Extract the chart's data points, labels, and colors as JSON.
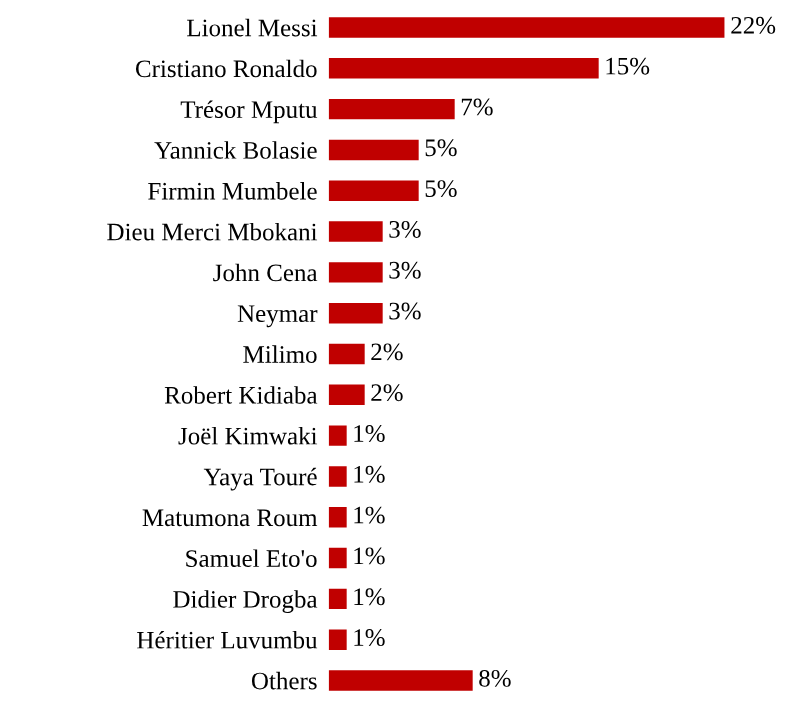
{
  "chart_data": {
    "type": "bar",
    "orientation": "horizontal",
    "categories": [
      "Lionel Messi",
      "Cristiano Ronaldo",
      "Trésor Mputu",
      "Yannick Bolasie",
      "Firmin Mumbele",
      "Dieu Merci Mbokani",
      "John Cena",
      "Neymar",
      "Milimo",
      "Robert Kidiaba",
      "Joël Kimwaki",
      "Yaya Touré",
      "Matumona Roum",
      "Samuel Eto'o",
      "Didier Drogba",
      "Héritier Luvumbu",
      "Others"
    ],
    "values": [
      22,
      15,
      7,
      5,
      5,
      3,
      3,
      3,
      2,
      2,
      1,
      1,
      1,
      1,
      1,
      1,
      8
    ],
    "value_labels": [
      "22%",
      "15%",
      "7%",
      "5%",
      "5%",
      "3%",
      "3%",
      "3%",
      "2%",
      "2%",
      "1%",
      "1%",
      "1%",
      "1%",
      "1%",
      "1%",
      "8%"
    ],
    "color": "#c00000",
    "grid": false,
    "legend": false
  }
}
